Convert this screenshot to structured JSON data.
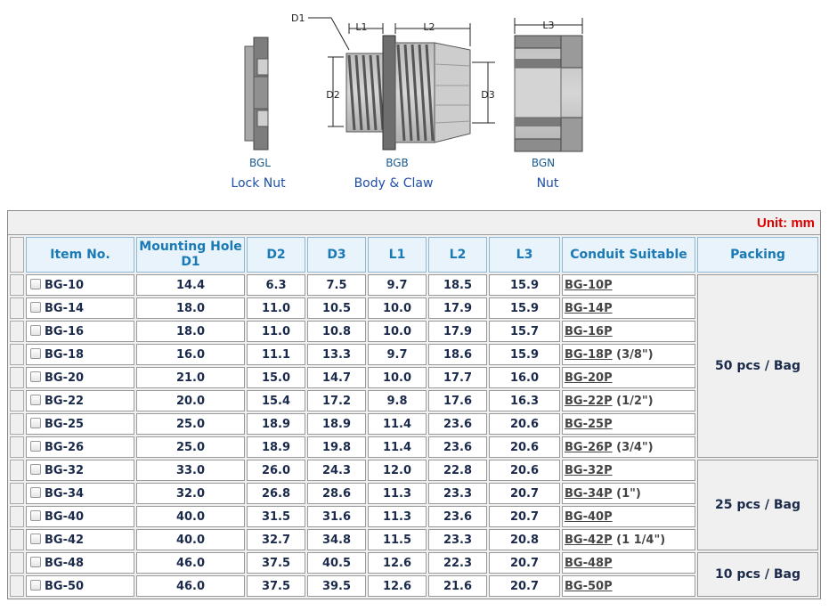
{
  "diagram": {
    "parts": [
      {
        "code": "BGL",
        "name": "Lock Nut"
      },
      {
        "code": "BGB",
        "name": "Body & Claw"
      },
      {
        "code": "BGN",
        "name": "Nut"
      }
    ],
    "dims": {
      "d1": "D1",
      "l1": "L1",
      "l2": "L2",
      "d2": "D2",
      "d3": "D3",
      "l3": "L3"
    }
  },
  "table": {
    "unit": "Unit: mm",
    "headers": {
      "item": "Item No.",
      "mounting_line1": "Mounting Hole",
      "mounting_line2": "D1",
      "d2": "D2",
      "d3": "D3",
      "l1": "L1",
      "l2": "L2",
      "l3": "L3",
      "conduit": "Conduit Suitable",
      "packing": "Packing"
    },
    "rows": [
      {
        "item": "BG-10",
        "d1": "14.4",
        "d2": "6.3",
        "d3": "7.5",
        "l1": "9.7",
        "l2": "18.5",
        "l3": "15.9",
        "conduit": "BG-10P",
        "conduit_note": ""
      },
      {
        "item": "BG-14",
        "d1": "18.0",
        "d2": "11.0",
        "d3": "10.5",
        "l1": "10.0",
        "l2": "17.9",
        "l3": "15.9",
        "conduit": "BG-14P",
        "conduit_note": ""
      },
      {
        "item": "BG-16",
        "d1": "18.0",
        "d2": "11.0",
        "d3": "10.8",
        "l1": "10.0",
        "l2": "17.9",
        "l3": "15.7",
        "conduit": "BG-16P",
        "conduit_note": ""
      },
      {
        "item": "BG-18",
        "d1": "16.0",
        "d2": "11.1",
        "d3": "13.3",
        "l1": "9.7",
        "l2": "18.6",
        "l3": "15.9",
        "conduit": "BG-18P",
        "conduit_note": "(3/8\")"
      },
      {
        "item": "BG-20",
        "d1": "21.0",
        "d2": "15.0",
        "d3": "14.7",
        "l1": "10.0",
        "l2": "17.7",
        "l3": "16.0",
        "conduit": "BG-20P",
        "conduit_note": ""
      },
      {
        "item": "BG-22",
        "d1": "20.0",
        "d2": "15.4",
        "d3": "17.2",
        "l1": "9.8",
        "l2": "17.6",
        "l3": "16.3",
        "conduit": "BG-22P",
        "conduit_note": "(1/2\")"
      },
      {
        "item": "BG-25",
        "d1": "25.0",
        "d2": "18.9",
        "d3": "18.9",
        "l1": "11.4",
        "l2": "23.6",
        "l3": "20.6",
        "conduit": "BG-25P",
        "conduit_note": ""
      },
      {
        "item": "BG-26",
        "d1": "25.0",
        "d2": "18.9",
        "d3": "19.8",
        "l1": "11.4",
        "l2": "23.6",
        "l3": "20.6",
        "conduit": "BG-26P",
        "conduit_note": "(3/4\")"
      },
      {
        "item": "BG-32",
        "d1": "33.0",
        "d2": "26.0",
        "d3": "24.3",
        "l1": "12.0",
        "l2": "22.8",
        "l3": "20.6",
        "conduit": "BG-32P",
        "conduit_note": ""
      },
      {
        "item": "BG-34",
        "d1": "32.0",
        "d2": "26.8",
        "d3": "28.6",
        "l1": "11.3",
        "l2": "23.3",
        "l3": "20.7",
        "conduit": "BG-34P",
        "conduit_note": "(1\")"
      },
      {
        "item": "BG-40",
        "d1": "40.0",
        "d2": "31.5",
        "d3": "31.6",
        "l1": "11.3",
        "l2": "23.6",
        "l3": "20.7",
        "conduit": "BG-40P",
        "conduit_note": ""
      },
      {
        "item": "BG-42",
        "d1": "40.0",
        "d2": "32.7",
        "d3": "34.8",
        "l1": "11.5",
        "l2": "23.3",
        "l3": "20.8",
        "conduit": "BG-42P",
        "conduit_note": "(1 1/4\")"
      },
      {
        "item": "BG-48",
        "d1": "46.0",
        "d2": "37.5",
        "d3": "40.5",
        "l1": "12.6",
        "l2": "22.3",
        "l3": "20.7",
        "conduit": "BG-48P",
        "conduit_note": ""
      },
      {
        "item": "BG-50",
        "d1": "46.0",
        "d2": "37.5",
        "d3": "39.5",
        "l1": "12.6",
        "l2": "21.6",
        "l3": "20.7",
        "conduit": "BG-50P",
        "conduit_note": ""
      }
    ],
    "packing_groups": [
      {
        "label": "50 pcs / Bag",
        "rows": 8
      },
      {
        "label": "25 pcs / Bag",
        "rows": 4
      },
      {
        "label": "10 pcs / Bag",
        "rows": 2
      }
    ]
  }
}
